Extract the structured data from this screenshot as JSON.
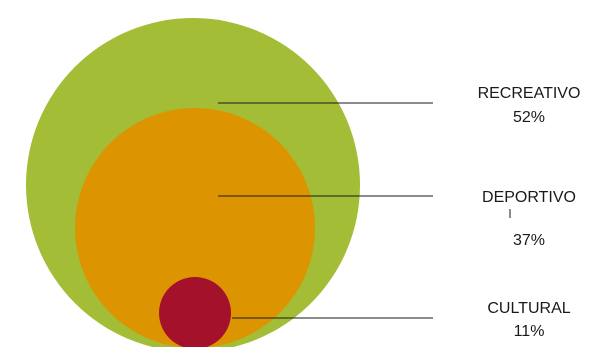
{
  "chart_data": {
    "type": "nested-circle",
    "categories": [
      "RECREATIVO",
      "DEPORTIVO",
      "CULTURAL"
    ],
    "values": [
      52,
      37,
      11
    ],
    "value_labels": [
      "52%",
      "37%",
      "11%"
    ],
    "colors": [
      "#a3bd36",
      "#dc9500",
      "#a3112a"
    ],
    "title": "",
    "legend": "right"
  }
}
